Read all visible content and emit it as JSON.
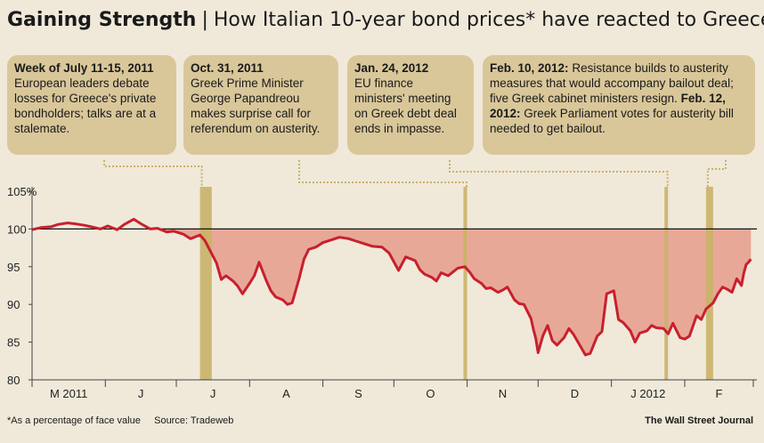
{
  "header": {
    "title_bold": "Gaining Strength",
    "separator": "|",
    "title_rest": "How Italian 10-year bond prices* have reacted to Greece"
  },
  "annotations": [
    {
      "date": "Week of July 11-15, 2011",
      "text": "European leaders debate losses for Greece's private bondholders; talks are at a stalemate."
    },
    {
      "date": "Oct. 31, 2011",
      "text": "Greek Prime Minister George Papandreou makes surprise call for referendum on austerity."
    },
    {
      "date": "Jan. 24, 2012",
      "text": "EU finance ministers' meeting on Greek debt deal ends in impasse."
    },
    {
      "date1": "Feb. 10, 2012:",
      "text1": " Resistance builds to austerity measures that would accompany bailout deal; five Greek cabinet ministers resign.",
      "date2": "Feb. 12, 2012:",
      "text2": " Greek Parliament votes for austerity bill needed to get bailout."
    }
  ],
  "footer": {
    "note": "*As a percentage of face value",
    "source": "Source: Tradeweb",
    "credit": "The Wall Street Journal"
  },
  "colors": {
    "line": "#c8202d",
    "fill_below_par": "#e8a898",
    "highlight": "#c9b267",
    "background": "#f0e9da"
  },
  "chart_data": {
    "type": "line",
    "title": "How Italian 10-year bond prices* have reacted to Greece",
    "ylabel": "",
    "xlabel": "",
    "ylim": [
      80,
      105
    ],
    "xlim": [
      "2011-05-01",
      "2012-02-29"
    ],
    "reference_line": 100,
    "ytick_labels": [
      "105%",
      "100",
      "95",
      "90",
      "85",
      "80"
    ],
    "yticks": [
      105,
      100,
      95,
      90,
      85,
      80
    ],
    "xtick_labels": [
      "M 2011",
      "J",
      "J",
      "A",
      "S",
      "O",
      "N",
      "D",
      "J 2012",
      "F"
    ],
    "month_starts": [
      "2011-05-01",
      "2011-06-01",
      "2011-07-01",
      "2011-08-01",
      "2011-09-01",
      "2011-10-01",
      "2011-11-01",
      "2011-12-01",
      "2012-01-01",
      "2012-02-01",
      "2012-03-01"
    ],
    "highlights": [
      {
        "label": "Week of July 11-15, 2011",
        "start": "2011-07-11",
        "end": "2011-07-15"
      },
      {
        "label": "Oct. 31, 2011",
        "start": "2011-10-31",
        "end": "2011-10-31"
      },
      {
        "label": "Jan. 24, 2012",
        "start": "2012-01-24",
        "end": "2012-01-24"
      },
      {
        "label": "Feb. 10-12, 2012",
        "start": "2012-02-10",
        "end": "2012-02-12"
      }
    ],
    "series": [
      {
        "values": [
          [
            "2011-05-01",
            99.9
          ],
          [
            "2011-05-05",
            100.2
          ],
          [
            "2011-05-09",
            100.3
          ],
          [
            "2011-05-12",
            100.6
          ],
          [
            "2011-05-16",
            100.8
          ],
          [
            "2011-05-19",
            100.7
          ],
          [
            "2011-05-23",
            100.5
          ],
          [
            "2011-05-26",
            100.3
          ],
          [
            "2011-05-30",
            100.0
          ],
          [
            "2011-06-02",
            100.4
          ],
          [
            "2011-06-06",
            99.9
          ],
          [
            "2011-06-09",
            100.6
          ],
          [
            "2011-06-13",
            101.3
          ],
          [
            "2011-06-16",
            100.7
          ],
          [
            "2011-06-20",
            100.0
          ],
          [
            "2011-06-23",
            100.1
          ],
          [
            "2011-06-27",
            99.6
          ],
          [
            "2011-06-30",
            99.7
          ],
          [
            "2011-07-04",
            99.3
          ],
          [
            "2011-07-07",
            98.7
          ],
          [
            "2011-07-11",
            99.2
          ],
          [
            "2011-07-13",
            98.5
          ],
          [
            "2011-07-15",
            97.3
          ],
          [
            "2011-07-18",
            95.5
          ],
          [
            "2011-07-20",
            93.3
          ],
          [
            "2011-07-22",
            93.8
          ],
          [
            "2011-07-25",
            93.1
          ],
          [
            "2011-07-27",
            92.4
          ],
          [
            "2011-07-29",
            91.4
          ],
          [
            "2011-08-01",
            92.8
          ],
          [
            "2011-08-03",
            93.8
          ],
          [
            "2011-08-05",
            95.6
          ],
          [
            "2011-08-08",
            93.2
          ],
          [
            "2011-08-10",
            91.8
          ],
          [
            "2011-08-12",
            91.0
          ],
          [
            "2011-08-15",
            90.6
          ],
          [
            "2011-08-17",
            90.0
          ],
          [
            "2011-08-19",
            90.2
          ],
          [
            "2011-08-22",
            93.5
          ],
          [
            "2011-08-24",
            96.0
          ],
          [
            "2011-08-26",
            97.3
          ],
          [
            "2011-08-29",
            97.6
          ],
          [
            "2011-09-01",
            98.2
          ],
          [
            "2011-09-05",
            98.6
          ],
          [
            "2011-09-08",
            98.9
          ],
          [
            "2011-09-12",
            98.7
          ],
          [
            "2011-09-15",
            98.4
          ],
          [
            "2011-09-19",
            98.0
          ],
          [
            "2011-09-22",
            97.7
          ],
          [
            "2011-09-26",
            97.6
          ],
          [
            "2011-09-29",
            96.8
          ],
          [
            "2011-10-03",
            94.5
          ],
          [
            "2011-10-06",
            96.3
          ],
          [
            "2011-10-10",
            95.8
          ],
          [
            "2011-10-12",
            94.6
          ],
          [
            "2011-10-14",
            94.0
          ],
          [
            "2011-10-17",
            93.6
          ],
          [
            "2011-10-19",
            93.1
          ],
          [
            "2011-10-21",
            94.2
          ],
          [
            "2011-10-24",
            93.8
          ],
          [
            "2011-10-26",
            94.3
          ],
          [
            "2011-10-28",
            94.8
          ],
          [
            "2011-10-31",
            95.0
          ],
          [
            "2011-11-02",
            94.3
          ],
          [
            "2011-11-04",
            93.4
          ],
          [
            "2011-11-07",
            92.8
          ],
          [
            "2011-11-09",
            92.1
          ],
          [
            "2011-11-11",
            92.2
          ],
          [
            "2011-11-14",
            91.6
          ],
          [
            "2011-11-16",
            91.9
          ],
          [
            "2011-11-18",
            92.3
          ],
          [
            "2011-11-21",
            90.6
          ],
          [
            "2011-11-23",
            90.1
          ],
          [
            "2011-11-25",
            90.0
          ],
          [
            "2011-11-28",
            88.1
          ],
          [
            "2011-11-29",
            86.7
          ],
          [
            "2011-11-30",
            85.5
          ],
          [
            "2011-12-01",
            83.6
          ],
          [
            "2011-12-03",
            85.8
          ],
          [
            "2011-12-05",
            87.2
          ],
          [
            "2011-12-07",
            85.2
          ],
          [
            "2011-12-09",
            84.6
          ],
          [
            "2011-12-12",
            85.6
          ],
          [
            "2011-12-14",
            86.8
          ],
          [
            "2011-12-16",
            86.0
          ],
          [
            "2011-12-19",
            84.4
          ],
          [
            "2011-12-21",
            83.3
          ],
          [
            "2011-12-23",
            83.5
          ],
          [
            "2011-12-26",
            85.8
          ],
          [
            "2011-12-28",
            86.4
          ],
          [
            "2011-12-30",
            91.4
          ],
          [
            "2012-01-02",
            91.8
          ],
          [
            "2012-01-04",
            88.0
          ],
          [
            "2012-01-06",
            87.6
          ],
          [
            "2012-01-09",
            86.5
          ],
          [
            "2012-01-11",
            85.0
          ],
          [
            "2012-01-13",
            86.2
          ],
          [
            "2012-01-16",
            86.5
          ],
          [
            "2012-01-18",
            87.2
          ],
          [
            "2012-01-20",
            86.9
          ],
          [
            "2012-01-23",
            86.8
          ],
          [
            "2012-01-25",
            86.1
          ],
          [
            "2012-01-27",
            87.5
          ],
          [
            "2012-01-30",
            85.6
          ],
          [
            "2012-02-01",
            85.4
          ],
          [
            "2012-02-03",
            85.8
          ],
          [
            "2012-02-06",
            88.5
          ],
          [
            "2012-02-08",
            88.0
          ],
          [
            "2012-02-10",
            89.4
          ],
          [
            "2012-02-13",
            90.2
          ],
          [
            "2012-02-15",
            91.4
          ],
          [
            "2012-02-17",
            92.3
          ],
          [
            "2012-02-19",
            92.0
          ],
          [
            "2012-02-21",
            91.6
          ],
          [
            "2012-02-23",
            93.4
          ],
          [
            "2012-02-25",
            92.5
          ],
          [
            "2012-02-26",
            94.2
          ],
          [
            "2012-02-27",
            95.3
          ],
          [
            "2012-02-28",
            95.6
          ],
          [
            "2012-02-29",
            96.0
          ]
        ]
      }
    ]
  }
}
